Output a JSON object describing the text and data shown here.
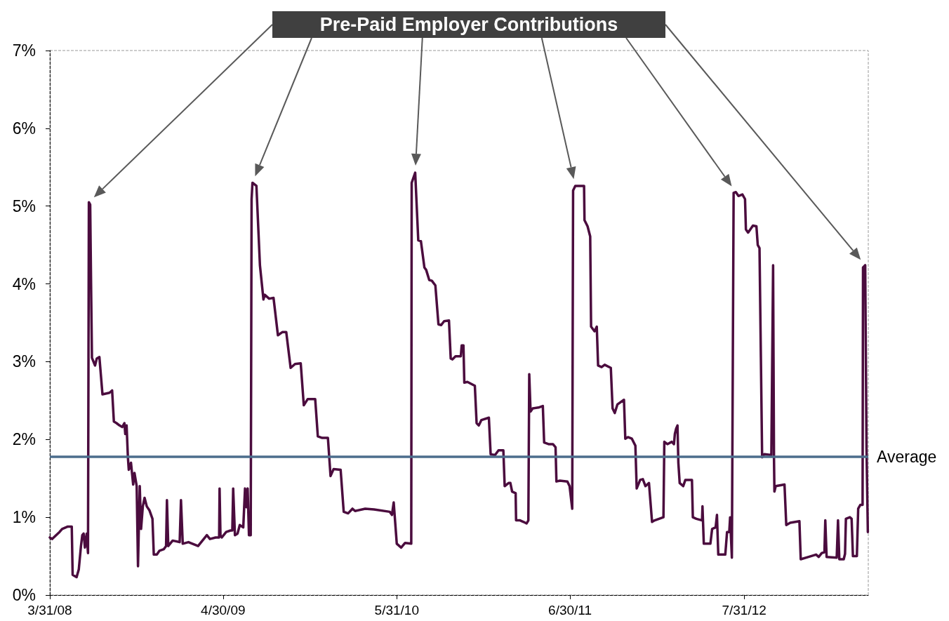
{
  "chart_data": {
    "type": "line",
    "annotations": [
      "Pre-Paid Employer Contributions"
    ],
    "x": [
      "2008-03-31",
      "2008-04-05",
      "2008-04-22",
      "2008-04-28",
      "2008-05-11",
      "2008-05-20",
      "2008-05-22",
      "2008-05-31",
      "2008-06-05",
      "2008-06-10",
      "2008-06-13",
      "2008-06-16",
      "2008-06-19",
      "2008-06-23",
      "2008-06-26",
      "2008-06-28",
      "2008-07-01",
      "2008-07-03",
      "2008-07-05",
      "2008-07-12",
      "2008-07-16",
      "2008-07-22",
      "2008-07-29",
      "2008-08-14",
      "2008-08-20",
      "2008-08-24",
      "2008-08-30",
      "2008-09-06",
      "2008-09-12",
      "2008-09-17",
      "2008-09-19",
      "2008-09-22",
      "2008-09-25",
      "2008-09-27",
      "2008-10-02",
      "2008-10-07",
      "2008-10-10",
      "2008-10-15",
      "2008-10-18",
      "2008-10-22",
      "2008-10-25",
      "2008-10-29",
      "2008-11-02",
      "2008-11-07",
      "2008-11-13",
      "2008-11-20",
      "2008-11-23",
      "2008-11-30",
      "2008-12-06",
      "2008-12-16",
      "2008-12-21",
      "2008-12-23",
      "2008-12-26",
      "2009-01-05",
      "2009-01-21",
      "2009-01-24",
      "2009-01-28",
      "2009-02-10",
      "2009-03-04",
      "2009-03-14",
      "2009-03-24",
      "2009-03-31",
      "2009-04-13",
      "2009-04-21",
      "2009-04-22",
      "2009-04-24",
      "2009-04-27",
      "2009-05-07",
      "2009-05-17",
      "2009-05-21",
      "2009-05-23",
      "2009-05-27",
      "2009-06-02",
      "2009-06-07",
      "2009-06-15",
      "2009-06-19",
      "2009-06-22",
      "2009-06-25",
      "2009-06-28",
      "2009-07-02",
      "2009-07-04",
      "2009-07-06",
      "2009-07-15",
      "2009-07-23",
      "2009-07-31",
      "2009-08-03",
      "2009-08-13",
      "2009-08-23",
      "2009-09-02",
      "2009-09-12",
      "2009-09-21",
      "2009-10-01",
      "2009-10-11",
      "2009-10-24",
      "2009-10-31",
      "2009-11-09",
      "2009-11-26",
      "2009-12-02",
      "2009-12-12",
      "2009-12-25",
      "2009-12-31",
      "2010-01-07",
      "2010-01-23",
      "2010-01-30",
      "2010-02-09",
      "2010-02-19",
      "2010-02-25",
      "2010-03-20",
      "2010-04-09",
      "2010-05-15",
      "2010-05-20",
      "2010-05-24",
      "2010-05-31",
      "2010-06-10",
      "2010-06-19",
      "2010-07-03",
      "2010-07-04",
      "2010-07-12",
      "2010-07-19",
      "2010-07-25",
      "2010-08-02",
      "2010-08-06",
      "2010-08-13",
      "2010-08-19",
      "2010-08-27",
      "2010-09-03",
      "2010-09-09",
      "2010-09-16",
      "2010-09-27",
      "2010-10-01",
      "2010-10-05",
      "2010-10-12",
      "2010-10-24",
      "2010-10-26",
      "2010-10-30",
      "2010-11-01",
      "2010-11-08",
      "2010-11-25",
      "2010-11-29",
      "2010-12-04",
      "2010-12-10",
      "2010-12-27",
      "2010-12-31",
      "2011-01-10",
      "2011-01-18",
      "2011-01-29",
      "2011-02-01",
      "2011-02-10",
      "2011-02-14",
      "2011-02-18",
      "2011-02-26",
      "2011-02-27",
      "2011-03-08",
      "2011-03-16",
      "2011-03-23",
      "2011-03-27",
      "2011-03-29",
      "2011-04-01",
      "2011-04-06",
      "2011-04-19",
      "2011-04-29",
      "2011-05-02",
      "2011-05-12",
      "2011-05-22",
      "2011-05-28",
      "2011-05-30",
      "2011-06-07",
      "2011-06-24",
      "2011-06-29",
      "2011-07-05",
      "2011-07-07",
      "2011-07-12",
      "2011-08-01",
      "2011-08-02",
      "2011-08-09",
      "2011-08-15",
      "2011-08-17",
      "2011-08-25",
      "2011-08-30",
      "2011-09-02",
      "2011-09-10",
      "2011-09-17",
      "2011-10-01",
      "2011-10-05",
      "2011-10-10",
      "2011-10-16",
      "2011-10-31",
      "2011-11-03",
      "2011-11-09",
      "2011-11-18",
      "2011-11-26",
      "2011-11-29",
      "2011-12-07",
      "2011-12-13",
      "2011-12-19",
      "2011-12-27",
      "2012-01-03",
      "2012-01-09",
      "2012-01-19",
      "2012-01-29",
      "2012-01-31",
      "2012-02-07",
      "2012-02-17",
      "2012-02-22",
      "2012-02-24",
      "2012-02-27",
      "2012-03-01",
      "2012-03-03",
      "2012-03-06",
      "2012-03-14",
      "2012-03-19",
      "2012-04-03",
      "2012-04-05",
      "2012-04-13",
      "2012-04-26",
      "2012-04-27",
      "2012-04-30",
      "2012-05-15",
      "2012-05-19",
      "2012-05-27",
      "2012-05-30",
      "2012-06-02",
      "2012-06-18",
      "2012-06-22",
      "2012-06-27",
      "2012-06-29",
      "2012-07-03",
      "2012-07-07",
      "2012-07-12",
      "2012-07-18",
      "2012-07-27",
      "2012-08-02",
      "2012-08-04",
      "2012-08-09",
      "2012-08-20",
      "2012-08-28",
      "2012-08-31",
      "2012-09-04",
      "2012-09-10",
      "2012-09-15",
      "2012-10-01",
      "2012-10-05",
      "2012-10-07",
      "2012-10-08",
      "2012-10-11",
      "2012-10-31",
      "2012-11-04",
      "2012-11-13",
      "2012-12-04",
      "2012-12-07",
      "2012-12-25",
      "2013-01-11",
      "2013-01-17",
      "2013-01-24",
      "2013-01-30",
      "2013-02-01",
      "2013-02-04",
      "2013-02-27",
      "2013-03-02",
      "2013-03-05",
      "2013-03-15",
      "2013-03-18",
      "2013-03-20",
      "2013-03-29",
      "2013-04-02",
      "2013-04-05",
      "2013-04-14",
      "2013-04-17",
      "2013-04-22",
      "2013-04-27",
      "2013-04-28",
      "2013-05-03",
      "2013-05-06",
      "2013-05-09"
    ],
    "values": [
      0.74,
      0.72,
      0.81,
      0.85,
      0.88,
      0.88,
      0.26,
      0.23,
      0.33,
      0.63,
      0.77,
      0.79,
      0.61,
      0.79,
      0.54,
      5.05,
      5.02,
      4.0,
      3.05,
      2.95,
      3.04,
      3.06,
      2.58,
      2.6,
      2.63,
      2.23,
      2.21,
      2.18,
      2.16,
      2.21,
      2.07,
      2.18,
      1.77,
      1.61,
      1.7,
      1.42,
      1.57,
      1.4,
      0.37,
      1.4,
      0.85,
      1.14,
      1.25,
      1.14,
      1.09,
      0.98,
      0.52,
      0.52,
      0.57,
      0.59,
      0.63,
      1.22,
      0.63,
      0.7,
      0.68,
      1.22,
      0.66,
      0.68,
      0.63,
      0.7,
      0.77,
      0.72,
      0.74,
      0.74,
      1.37,
      0.77,
      0.74,
      0.81,
      0.83,
      0.83,
      1.37,
      0.77,
      0.79,
      0.9,
      0.87,
      1.37,
      1.13,
      1.37,
      0.77,
      0.77,
      5.09,
      5.3,
      5.26,
      4.24,
      3.8,
      3.86,
      3.81,
      3.82,
      3.34,
      3.38,
      3.38,
      2.92,
      2.97,
      2.98,
      2.44,
      2.52,
      2.52,
      2.04,
      2.02,
      2.02,
      1.53,
      1.62,
      1.61,
      1.07,
      1.05,
      1.11,
      1.08,
      1.11,
      1.1,
      1.07,
      1.03,
      1.19,
      0.66,
      0.61,
      0.67,
      0.66,
      5.3,
      5.43,
      4.56,
      4.55,
      4.21,
      4.18,
      4.05,
      4.04,
      3.98,
      3.48,
      3.47,
      3.52,
      3.53,
      3.04,
      3.03,
      3.07,
      3.07,
      3.21,
      3.21,
      2.73,
      2.74,
      2.69,
      2.21,
      2.18,
      2.25,
      2.28,
      1.81,
      1.8,
      1.86,
      1.86,
      1.4,
      1.44,
      1.44,
      1.33,
      1.31,
      0.96,
      0.96,
      0.94,
      0.92,
      0.96,
      2.84,
      2.36,
      2.4,
      2.41,
      2.43,
      1.96,
      1.94,
      1.94,
      1.9,
      1.46,
      1.47,
      1.46,
      1.4,
      1.11,
      5.2,
      5.26,
      5.26,
      4.82,
      4.74,
      4.61,
      3.45,
      3.39,
      3.45,
      2.95,
      2.93,
      2.96,
      2.92,
      2.4,
      2.34,
      2.45,
      2.51,
      2.01,
      2.03,
      2.01,
      1.92,
      1.37,
      1.48,
      1.49,
      1.4,
      1.44,
      0.94,
      0.96,
      0.98,
      1.0,
      1.97,
      1.94,
      1.97,
      1.94,
      2.07,
      2.14,
      2.18,
      1.7,
      1.44,
      1.4,
      1.48,
      1.48,
      1.0,
      0.98,
      0.96,
      1.14,
      0.66,
      0.66,
      0.85,
      0.87,
      1.03,
      0.52,
      0.52,
      0.81,
      0.81,
      1.0,
      0.48,
      5.17,
      5.18,
      5.13,
      5.15,
      5.09,
      4.7,
      4.66,
      4.75,
      4.74,
      4.5,
      4.46,
      1.77,
      1.81,
      1.8,
      4.24,
      1.77,
      1.33,
      1.4,
      1.42,
      0.9,
      0.93,
      0.95,
      0.46,
      0.49,
      0.52,
      0.49,
      0.54,
      0.55,
      0.96,
      0.49,
      0.48,
      0.96,
      0.46,
      0.46,
      0.53,
      0.98,
      1.0,
      0.98,
      0.5,
      0.5,
      1.11,
      1.16,
      1.16,
      4.21,
      4.24,
      1.88,
      0.81
    ],
    "color": "#4b0c3e",
    "line_style": "solid",
    "xlim": [
      "2008-03-31",
      "2013-05-10"
    ],
    "xticks": [
      {
        "value": "2008-03-31",
        "label": "3/31/08"
      },
      {
        "value": "2009-04-30",
        "label": "4/30/09"
      },
      {
        "value": "2010-05-31",
        "label": "5/31/10"
      },
      {
        "value": "2011-06-30",
        "label": "6/30/11"
      },
      {
        "value": "2012-07-31",
        "label": "7/31/12"
      }
    ],
    "ylim": [
      0,
      7
    ],
    "yticks": [
      {
        "value": 0,
        "label": "0%"
      },
      {
        "value": 1,
        "label": "1%"
      },
      {
        "value": 2,
        "label": "2%"
      },
      {
        "value": 3,
        "label": "3%"
      },
      {
        "value": 4,
        "label": "4%"
      },
      {
        "value": 5,
        "label": "5%"
      },
      {
        "value": 6,
        "label": "6%"
      },
      {
        "value": 7,
        "label": "7%"
      }
    ],
    "ref_lines": [
      {
        "axis": "y",
        "value": 1.78,
        "label": "Average",
        "color": "#4c6d8c"
      }
    ]
  }
}
